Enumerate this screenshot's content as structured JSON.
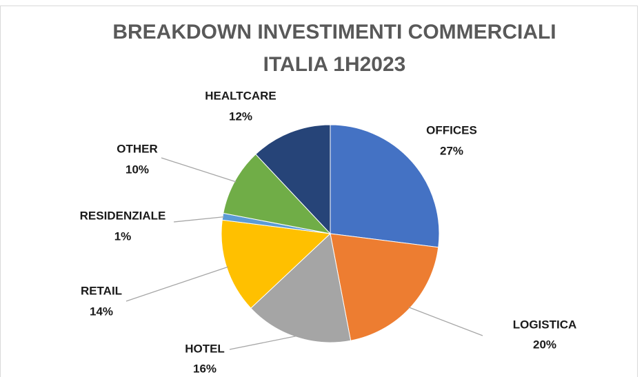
{
  "chart_data": {
    "type": "pie",
    "title": "BREAKDOWN INVESTIMENTI COMMERCIALI ITALIA 1H2023",
    "categories": [
      "OFFICES",
      "LOGISTICA",
      "HOTEL",
      "RETAIL",
      "RESIDENZIALE",
      "OTHER",
      "HEALTCARE"
    ],
    "values": [
      27,
      20,
      16,
      14,
      1,
      10,
      12
    ],
    "value_labels": [
      "27%",
      "20%",
      "16%",
      "14%",
      "1%",
      "10%",
      "12%"
    ],
    "colors": [
      "#4472c4",
      "#ed7d31",
      "#a5a5a5",
      "#ffc000",
      "#5b9bd5",
      "#70ad47",
      "#264478"
    ]
  }
}
